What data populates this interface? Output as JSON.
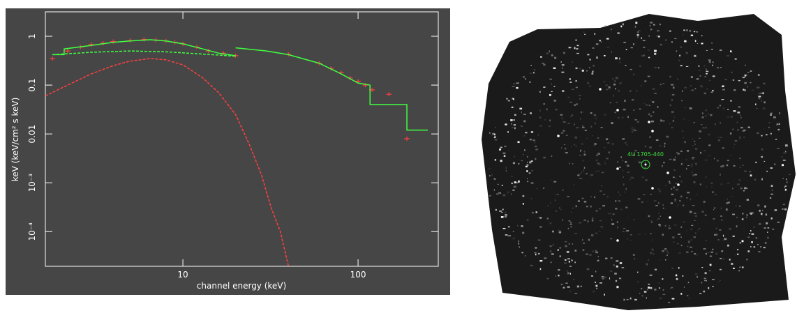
{
  "chart_data": {
    "type": "line",
    "x_label": "channel energy (keV)",
    "y_label": "keV (keV/cm² s keV)",
    "log_x": true,
    "log_y": true,
    "xlim": [
      1.64,
      287
    ],
    "ylim": [
      1.95e-05,
      3.16
    ],
    "xticks": [
      10,
      100
    ],
    "yticks": [
      1,
      0.1,
      0.01,
      {
        "value": 0.001,
        "label": "10⁻³"
      },
      {
        "value": 0.0001,
        "label": "10⁻⁴"
      }
    ],
    "series": [
      {
        "style": "points",
        "color": "#ff4040",
        "x": [
          1.8,
          2.2,
          2.6,
          3,
          3.5,
          4,
          5,
          6,
          7,
          8,
          9,
          10,
          12,
          14,
          17,
          20,
          40,
          60,
          70,
          80,
          90,
          100,
          110,
          120,
          150,
          190
        ],
        "values": [
          0.35,
          0.5,
          0.6,
          0.68,
          0.72,
          0.78,
          0.82,
          0.86,
          0.84,
          0.8,
          0.75,
          0.7,
          0.6,
          0.5,
          0.45,
          0.4,
          0.43,
          0.28,
          0.22,
          0.18,
          0.14,
          0.12,
          0.1,
          0.08,
          0.065,
          0.008
        ]
      },
      {
        "style": "dashed",
        "color": "#ff4040",
        "x": [
          1.64,
          2,
          3,
          4,
          5,
          6.5,
          8,
          10,
          13,
          16,
          20,
          24,
          28,
          32,
          36,
          40
        ],
        "values": [
          0.06,
          0.085,
          0.17,
          0.25,
          0.31,
          0.35,
          0.33,
          0.26,
          0.14,
          0.07,
          0.025,
          0.006,
          0.0015,
          0.0003,
          0.0001,
          2e-05
        ]
      },
      {
        "style": "dashed",
        "color": "#40ff40",
        "x": [
          1.8,
          3,
          5,
          8,
          12,
          20
        ],
        "values": [
          0.42,
          0.47,
          0.5,
          0.48,
          0.44,
          0.39
        ]
      },
      {
        "style": "solid",
        "color": "#40ff40",
        "x": [
          1.8,
          2.1,
          2.1,
          3,
          4,
          5,
          6.5,
          8,
          10,
          13,
          16,
          20,
          null,
          20,
          30,
          40,
          60,
          80,
          100,
          117,
          117,
          190,
          190,
          250
        ],
        "values": [
          0.42,
          0.42,
          0.55,
          0.65,
          0.75,
          0.8,
          0.85,
          0.8,
          0.7,
          0.55,
          0.45,
          0.4,
          null,
          0.58,
          0.5,
          0.42,
          0.28,
          0.17,
          0.11,
          0.1,
          0.04,
          0.04,
          0.012,
          0.012
        ]
      }
    ]
  },
  "sky_image": {
    "source_label": "4U 1705-440"
  }
}
